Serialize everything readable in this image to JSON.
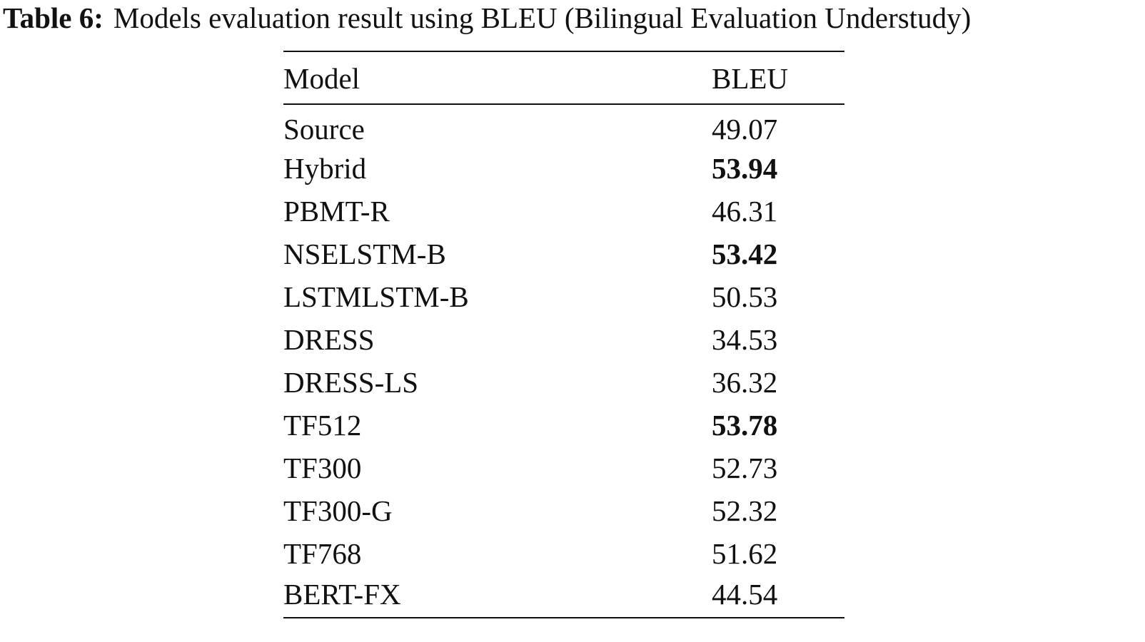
{
  "caption": {
    "label": "Table 6:",
    "text": "Models evaluation result using BLEU (Bilingual Evaluation Understudy)"
  },
  "table": {
    "columns": [
      "Model",
      "BLEU"
    ],
    "rows": [
      {
        "model": "Source",
        "bleu": "49.07",
        "bold": false
      },
      {
        "model": "Hybrid",
        "bleu": "53.94",
        "bold": true
      },
      {
        "model": "PBMT-R",
        "bleu": "46.31",
        "bold": false
      },
      {
        "model": "NSELSTM-B",
        "bleu": "53.42",
        "bold": true
      },
      {
        "model": "LSTMLSTM-B",
        "bleu": "50.53",
        "bold": false
      },
      {
        "model": "DRESS",
        "bleu": "34.53",
        "bold": false
      },
      {
        "model": "DRESS-LS",
        "bleu": "36.32",
        "bold": false
      },
      {
        "model": "TF512",
        "bleu": "53.78",
        "bold": true
      },
      {
        "model": "TF300",
        "bleu": "52.73",
        "bold": false
      },
      {
        "model": "TF300-G",
        "bleu": "52.32",
        "bold": false
      },
      {
        "model": "TF768",
        "bleu": "51.62",
        "bold": false
      },
      {
        "model": "BERT-FX",
        "bleu": "44.54",
        "bold": false
      }
    ]
  }
}
